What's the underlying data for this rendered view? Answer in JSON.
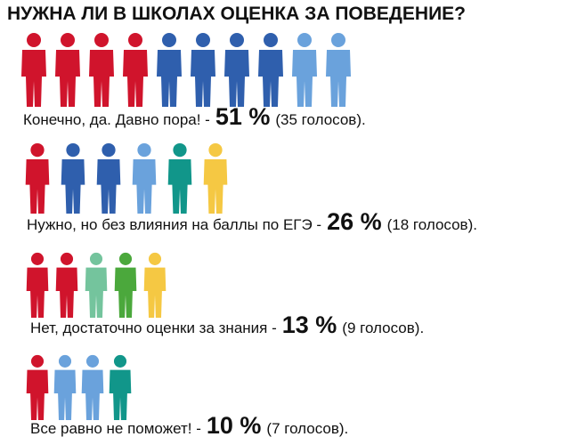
{
  "chart_data": {
    "type": "pictogram",
    "title": "НУЖНА ЛИ В ШКОЛАХ ОЦЕНКА ЗА ПОВЕДЕНИЕ?",
    "categories": [
      "Конечно, да. Давно пора! -",
      "Нужно, но без влияния на баллы по ЕГЭ -",
      "Нет, достаточно оценки за знания -",
      "Все равно не поможет! -"
    ],
    "values": [
      51,
      26,
      13,
      10
    ],
    "value_labels": [
      "51 %",
      "26 %",
      "13 %",
      "10 %"
    ],
    "vote_labels": [
      "(35 голосов).",
      "(18 голосов).",
      "(9 голосов).",
      "(7 голосов)."
    ],
    "figure_colors": [
      [
        "#d0142c",
        "#d0142c",
        "#d0142c",
        "#d0142c",
        "#2f5fad",
        "#2f5fad",
        "#2f5fad",
        "#2f5fad",
        "#6aa2dc",
        "#6aa2dc"
      ],
      [
        "#d0142c",
        "#2f5fad",
        "#2f5fad",
        "#6aa2dc",
        "#11968a",
        "#f5c843"
      ],
      [
        "#d0142c",
        "#d0142c",
        "#74c49d",
        "#4ba83c",
        "#f5c843"
      ],
      [
        "#d0142c",
        "#6aa2dc",
        "#6aa2dc",
        "#11968a"
      ]
    ]
  }
}
